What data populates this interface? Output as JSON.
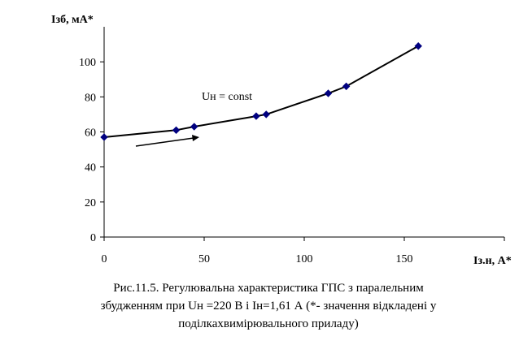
{
  "chart_data": {
    "type": "line",
    "x": [
      0,
      36,
      45,
      76,
      81,
      112,
      121,
      157
    ],
    "y": [
      57,
      61,
      63,
      69,
      70,
      82,
      86,
      109
    ],
    "xlim": [
      0,
      200
    ],
    "ylim": [
      0,
      120
    ],
    "x_ticks": [
      "0",
      "50",
      "100",
      "150"
    ],
    "y_ticks": [
      "0",
      "20",
      "40",
      "60",
      "80",
      "100"
    ],
    "xlabel": "Iз.н, А*",
    "ylabel": "Iзб, мА*",
    "annotation": "Uн = const",
    "colors": {
      "line": "#000000",
      "marker": "#000080"
    },
    "grid": false
  },
  "caption": {
    "line1": "Рис.11.5. Регулювальна характеристика ГПС з паралельним",
    "line2": "збудженням при Uн =220 В і Iн=1,61 А  (*- значення відкладені у",
    "line3": "поділкахвимірювального приладу)"
  }
}
